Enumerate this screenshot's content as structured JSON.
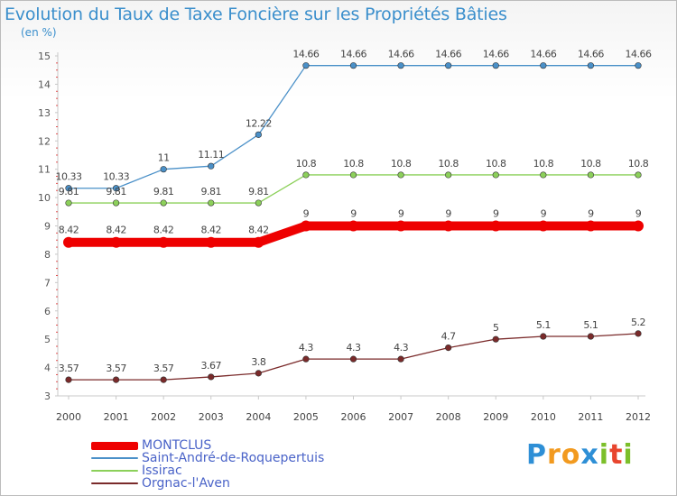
{
  "title": "Evolution du Taux de Taxe Foncière sur les Propriétés Bâties",
  "subtitle": "(en %)",
  "logo": {
    "letters": [
      "P",
      "r",
      "o",
      "x",
      "i",
      "t",
      "i"
    ],
    "colors": [
      "#2e8fd6",
      "#f29a1f",
      "#f29a1f",
      "#2e8fd6",
      "#7cbf2a",
      "#e8452e",
      "#7cbf2a"
    ]
  },
  "chart_data": {
    "type": "line",
    "x": [
      "2000",
      "2001",
      "2002",
      "2003",
      "2004",
      "2005",
      "2006",
      "2007",
      "2008",
      "2009",
      "2010",
      "2011",
      "2012"
    ],
    "ylim": [
      3,
      15
    ],
    "yticks": [
      "3",
      "4",
      "5",
      "6",
      "7",
      "8",
      "9",
      "10",
      "11",
      "12",
      "13",
      "14",
      "15"
    ],
    "grid": false,
    "legend_position": "bottom-left",
    "series": [
      {
        "name": "MONTCLUS",
        "color": "#ee0000",
        "values": [
          8.42,
          8.42,
          8.42,
          8.42,
          8.42,
          9,
          9,
          9,
          9,
          9,
          9,
          9,
          9
        ],
        "labels": [
          "8.42",
          "8.42",
          "8.42",
          "8.42",
          "8.42",
          "9",
          "9",
          "9",
          "9",
          "9",
          "9",
          "9",
          "9"
        ]
      },
      {
        "name": "Saint-André-de-Roquepertuis",
        "color": "#4a90c8",
        "values": [
          10.33,
          10.33,
          11,
          11.11,
          12.22,
          14.66,
          14.66,
          14.66,
          14.66,
          14.66,
          14.66,
          14.66,
          14.66
        ],
        "labels": [
          "10.33",
          "10.33",
          "11",
          "11.11",
          "12.22",
          "14.66",
          "14.66",
          "14.66",
          "14.66",
          "14.66",
          "14.66",
          "14.66",
          "14.66"
        ]
      },
      {
        "name": "Issirac",
        "color": "#8cd05a",
        "values": [
          9.81,
          9.81,
          9.81,
          9.81,
          9.81,
          10.8,
          10.8,
          10.8,
          10.8,
          10.8,
          10.8,
          10.8,
          10.8
        ],
        "labels": [
          "9.81",
          "9.81",
          "9.81",
          "9.81",
          "9.81",
          "10.8",
          "10.8",
          "10.8",
          "10.8",
          "10.8",
          "10.8",
          "10.8",
          "10.8"
        ]
      },
      {
        "name": "Orgnac-l'Aven",
        "color": "#7a2a2a",
        "values": [
          3.57,
          3.57,
          3.57,
          3.67,
          3.8,
          4.3,
          4.3,
          4.3,
          4.7,
          5,
          5.1,
          5.1,
          5.2
        ],
        "labels": [
          "3.57",
          "3.57",
          "3.57",
          "3.67",
          "3.8",
          "4.3",
          "4.3",
          "4.3",
          "4.7",
          "5",
          "5.1",
          "5.1",
          "5.2"
        ]
      }
    ]
  }
}
